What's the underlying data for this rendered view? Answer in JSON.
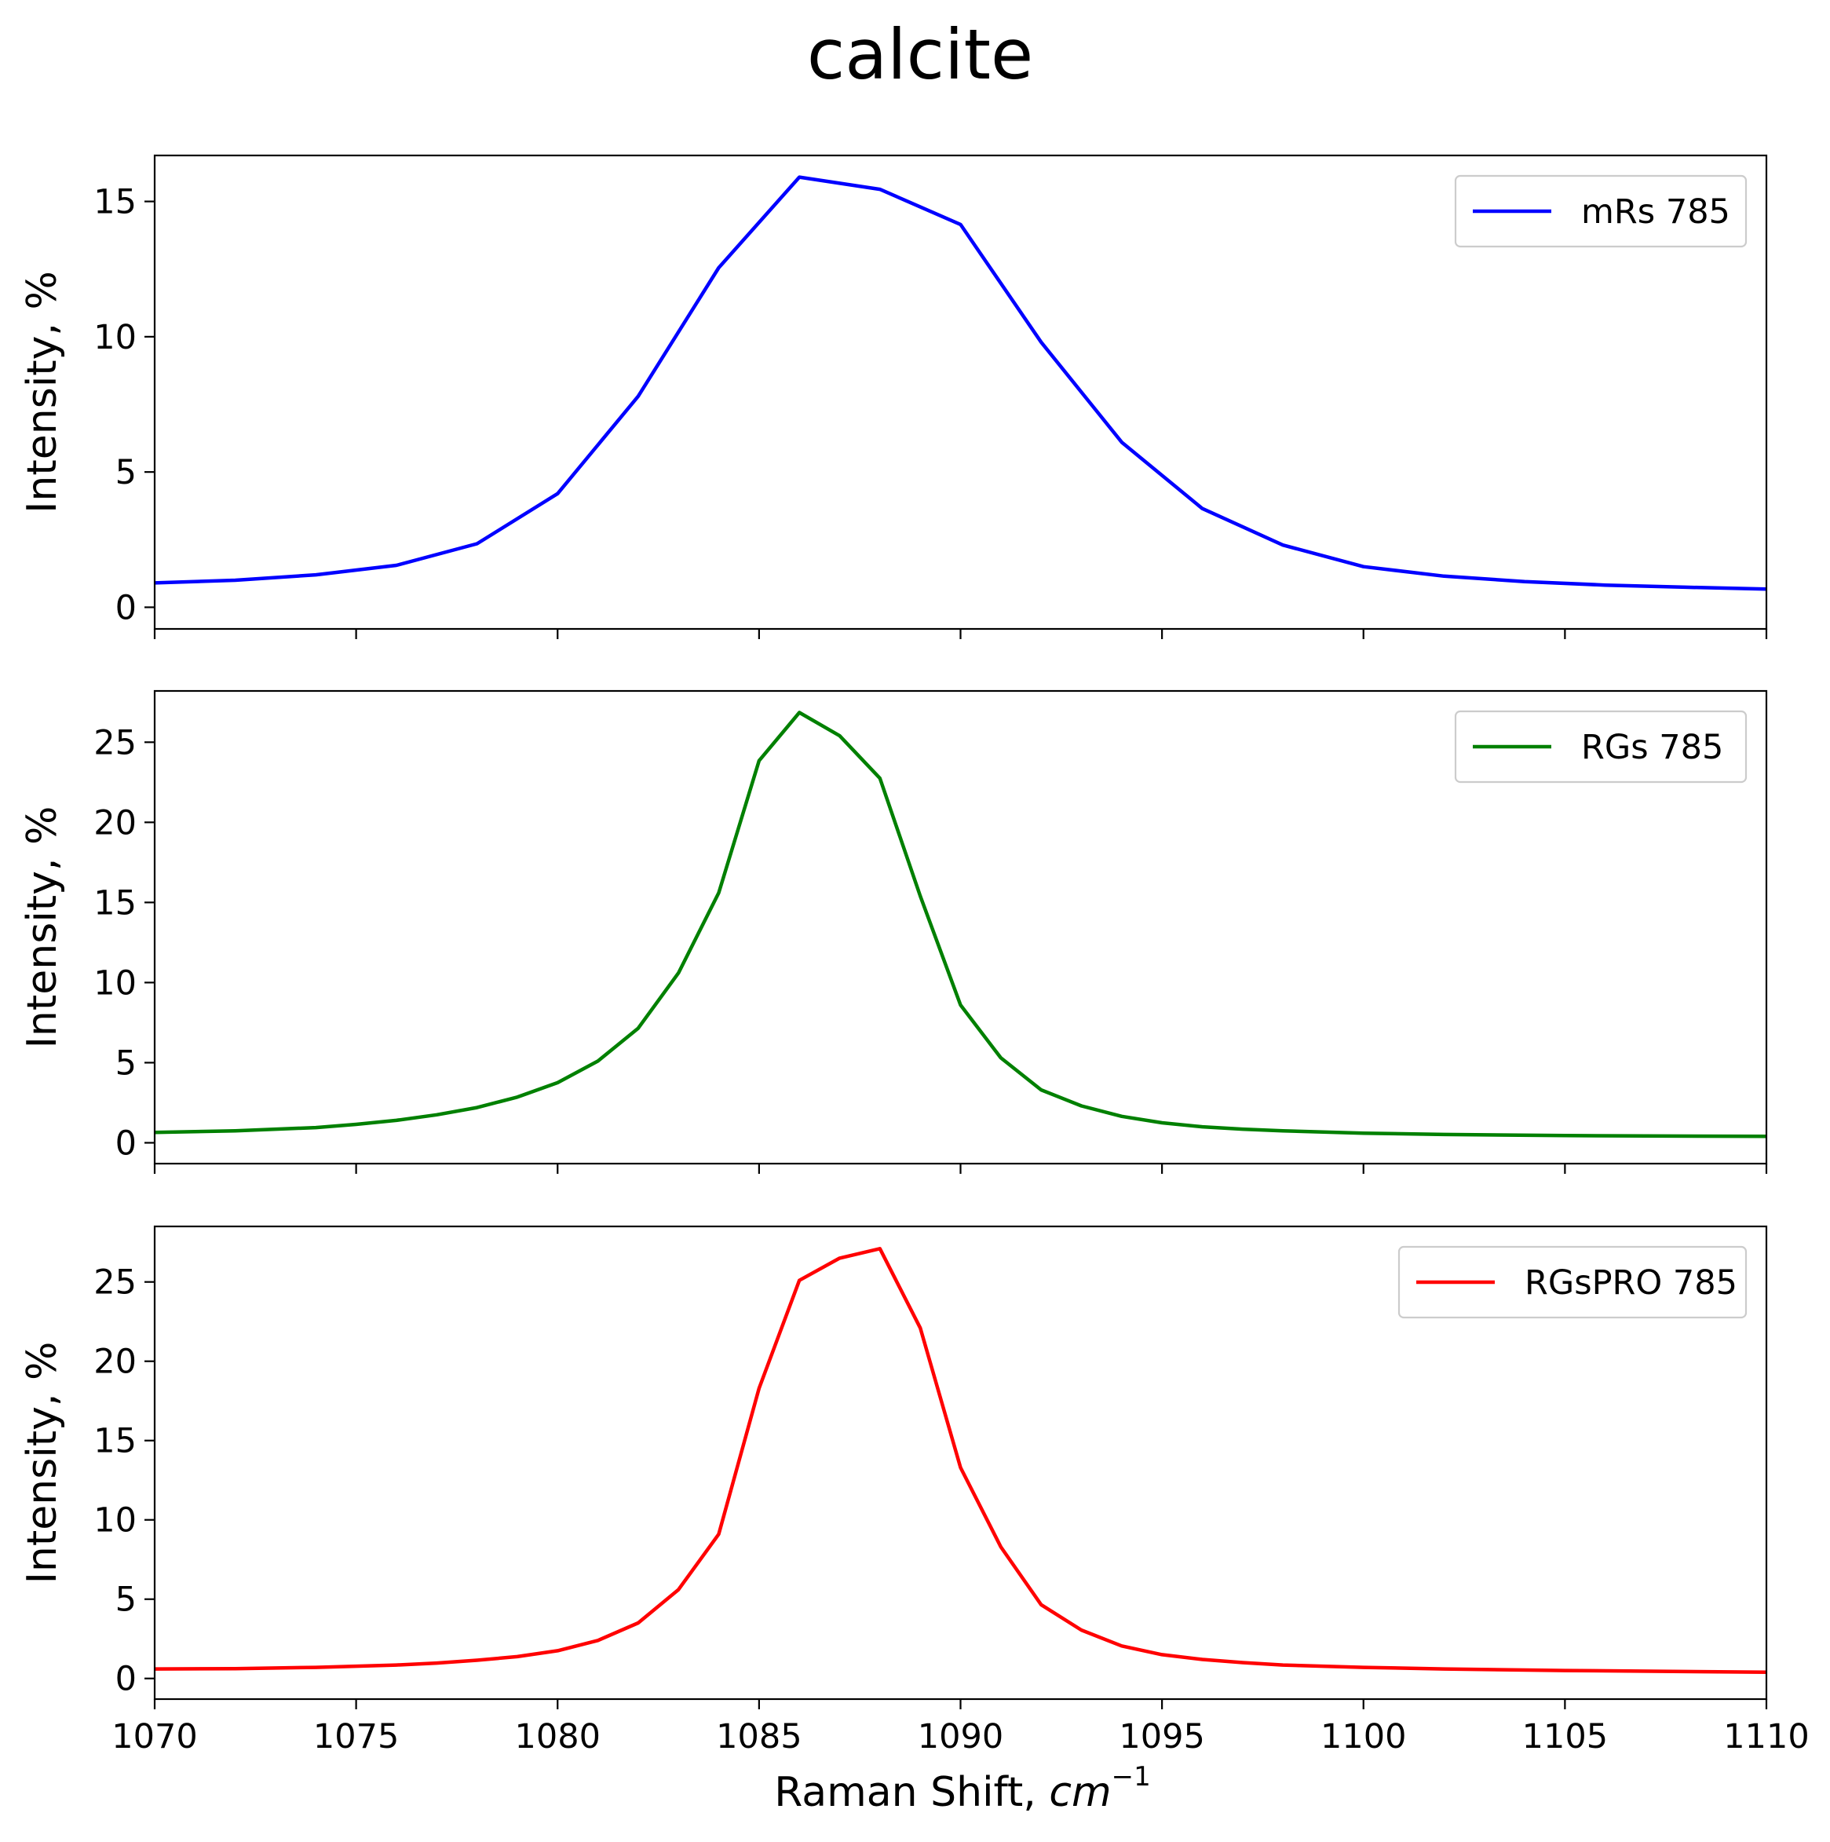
{
  "figure": {
    "title": "calcite",
    "xlabel": "Raman Shift, ",
    "xlabel_unit_base": "cm",
    "xlabel_unit_exp": "−1"
  },
  "chart_data": [
    {
      "type": "line",
      "title": "calcite",
      "xlabel": "Raman Shift, cm⁻¹",
      "ylabel": "Intensity, %",
      "xlim": [
        1070,
        1110
      ],
      "ylim": [
        -0.8,
        16.7
      ],
      "xticks": [
        1070,
        1075,
        1080,
        1085,
        1090,
        1095,
        1100,
        1105,
        1110
      ],
      "yticks": [
        0,
        5,
        10,
        15
      ],
      "x_tick_labels_visible": false,
      "grid": false,
      "legend_position": "upper right",
      "series": [
        {
          "name": "mRs 785",
          "color": "#0000ff",
          "x": [
            1070,
            1072,
            1074,
            1076,
            1078,
            1080,
            1082,
            1084,
            1086,
            1088,
            1090,
            1092,
            1094,
            1096,
            1098,
            1100,
            1102,
            1104,
            1106,
            1108,
            1110
          ],
          "y": [
            0.9,
            1.0,
            1.2,
            1.55,
            2.35,
            4.2,
            7.8,
            12.55,
            15.9,
            15.45,
            14.15,
            9.8,
            6.1,
            3.65,
            2.3,
            1.5,
            1.15,
            0.95,
            0.82,
            0.74,
            0.67
          ]
        }
      ]
    },
    {
      "type": "line",
      "ylabel": "Intensity, %",
      "xlim": [
        1070,
        1110
      ],
      "ylim": [
        -1.3,
        28.2
      ],
      "xticks": [
        1070,
        1075,
        1080,
        1085,
        1090,
        1095,
        1100,
        1105,
        1110
      ],
      "yticks": [
        0,
        5,
        10,
        15,
        20,
        25
      ],
      "x_tick_labels_visible": false,
      "grid": false,
      "legend_position": "upper right",
      "series": [
        {
          "name": "RGs 785",
          "color": "#008000",
          "x": [
            1070,
            1072,
            1074,
            1075,
            1076,
            1077,
            1078,
            1079,
            1080,
            1081,
            1082,
            1083,
            1084,
            1085,
            1086,
            1087,
            1088,
            1089,
            1090,
            1091,
            1092,
            1093,
            1094,
            1095,
            1096,
            1097,
            1098,
            1100,
            1102,
            1105,
            1110
          ],
          "y": [
            0.65,
            0.75,
            0.95,
            1.15,
            1.4,
            1.75,
            2.2,
            2.85,
            3.75,
            5.1,
            7.15,
            10.6,
            15.6,
            23.85,
            26.85,
            25.4,
            22.75,
            15.4,
            8.6,
            5.3,
            3.3,
            2.3,
            1.65,
            1.25,
            1.0,
            0.85,
            0.75,
            0.6,
            0.52,
            0.45,
            0.4
          ]
        }
      ]
    },
    {
      "type": "line",
      "xlabel": "Raman Shift, cm⁻¹",
      "ylabel": "Intensity, %",
      "xlim": [
        1070,
        1110
      ],
      "ylim": [
        -1.3,
        28.5
      ],
      "xticks": [
        1070,
        1075,
        1080,
        1085,
        1090,
        1095,
        1100,
        1105,
        1110
      ],
      "yticks": [
        0,
        5,
        10,
        15,
        20,
        25
      ],
      "x_tick_labels_visible": true,
      "grid": false,
      "legend_position": "upper right",
      "series": [
        {
          "name": "RGsPRO 785",
          "color": "#ff0000",
          "x": [
            1070,
            1072,
            1074,
            1076,
            1077,
            1078,
            1079,
            1080,
            1081,
            1082,
            1083,
            1084,
            1085,
            1086,
            1087,
            1088,
            1089,
            1090,
            1091,
            1092,
            1093,
            1094,
            1095,
            1096,
            1097,
            1098,
            1100,
            1102,
            1105,
            1110
          ],
          "y": [
            0.6,
            0.62,
            0.7,
            0.85,
            0.97,
            1.15,
            1.38,
            1.75,
            2.4,
            3.5,
            5.6,
            9.1,
            18.3,
            25.1,
            26.5,
            27.1,
            22.1,
            13.3,
            8.3,
            4.65,
            3.05,
            2.05,
            1.5,
            1.2,
            1.0,
            0.85,
            0.7,
            0.6,
            0.5,
            0.4
          ]
        }
      ]
    }
  ]
}
